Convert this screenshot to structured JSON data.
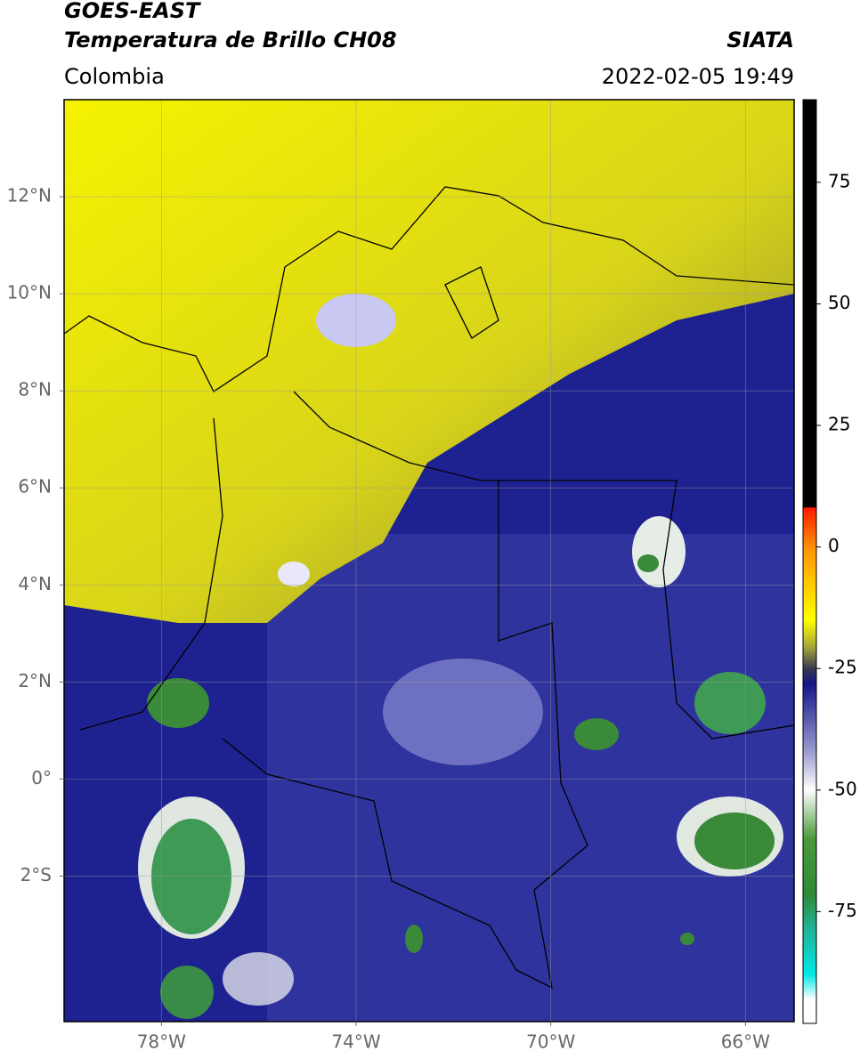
{
  "header": {
    "title": "GOES-EAST",
    "subtitle": "Temperatura de Brillo CH08",
    "source": "SIATA",
    "region": "Colombia",
    "timestamp": "2022-02-05 19:49"
  },
  "map": {
    "xlim": [
      -80,
      -65
    ],
    "ylim": [
      -5,
      14
    ],
    "xticks": [
      {
        "value": -78,
        "label": "78°W"
      },
      {
        "value": -74,
        "label": "74°W"
      },
      {
        "value": -70,
        "label": "70°W"
      },
      {
        "value": -66,
        "label": "66°W"
      }
    ],
    "yticks": [
      {
        "value": 12,
        "label": "12°N"
      },
      {
        "value": 10,
        "label": "10°N"
      },
      {
        "value": 8,
        "label": "8°N"
      },
      {
        "value": 6,
        "label": "6°N"
      },
      {
        "value": 4,
        "label": "4°N"
      },
      {
        "value": 2,
        "label": "2°N"
      },
      {
        "value": 0,
        "label": "0°"
      },
      {
        "value": -2,
        "label": "2°S"
      }
    ],
    "grid": true
  },
  "colorbar": {
    "lim": [
      -98,
      92
    ],
    "ticks": [
      -75,
      -50,
      -25,
      0,
      25,
      50,
      75
    ]
  }
}
